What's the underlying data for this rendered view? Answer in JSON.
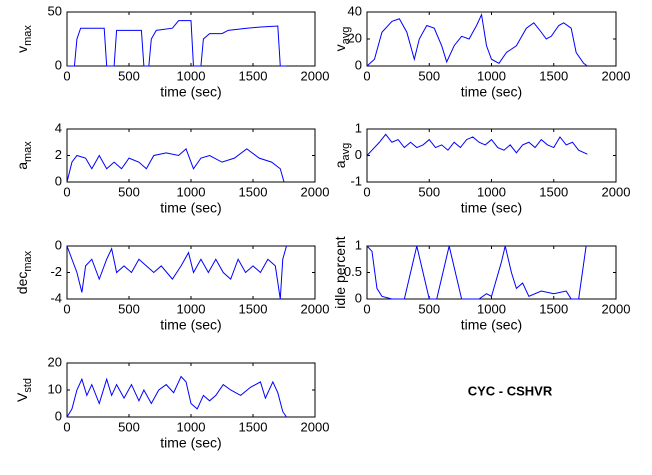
{
  "chart_data": [
    {
      "type": "line",
      "ylabel": "v",
      "ylabel_sub": "max",
      "xlabel": "time (sec)",
      "x": [
        0,
        60,
        80,
        110,
        300,
        320,
        380,
        400,
        600,
        620,
        660,
        680,
        720,
        850,
        900,
        1000,
        1020,
        1080,
        1100,
        1150,
        1250,
        1300,
        1450,
        1550,
        1700,
        1720,
        1770
      ],
      "series": [
        {
          "color": "#0000ff",
          "values": [
            0,
            0,
            25,
            35,
            35,
            0,
            0,
            33,
            33,
            0,
            0,
            25,
            33,
            35,
            42,
            42,
            0,
            0,
            25,
            30,
            30,
            33,
            35,
            36,
            37,
            0,
            0
          ]
        }
      ],
      "xlim": [
        0,
        2000
      ],
      "xticks": [
        0,
        500,
        1000,
        1500,
        2000
      ],
      "ylim": [
        0,
        50
      ],
      "yticks": [
        0,
        50
      ]
    },
    {
      "type": "line",
      "ylabel": "v",
      "ylabel_sub": "avg",
      "xlabel": "time (sec)",
      "x": [
        0,
        60,
        120,
        200,
        260,
        320,
        380,
        420,
        480,
        540,
        600,
        640,
        700,
        760,
        820,
        880,
        920,
        960,
        1000,
        1060,
        1120,
        1200,
        1280,
        1340,
        1400,
        1440,
        1480,
        1540,
        1580,
        1640,
        1680,
        1740,
        1770
      ],
      "series": [
        {
          "color": "#0000ff",
          "values": [
            0,
            5,
            25,
            33,
            35,
            25,
            5,
            20,
            30,
            28,
            15,
            3,
            15,
            22,
            20,
            30,
            38,
            15,
            5,
            2,
            10,
            15,
            28,
            32,
            25,
            20,
            22,
            30,
            32,
            28,
            10,
            2,
            0
          ]
        }
      ],
      "xlim": [
        0,
        2000
      ],
      "xticks": [
        0,
        500,
        1000,
        1500,
        2000
      ],
      "ylim": [
        0,
        40
      ],
      "yticks": [
        0,
        20,
        40
      ]
    },
    {
      "type": "line",
      "ylabel": "a",
      "ylabel_sub": "max",
      "xlabel": "time (sec)",
      "x": [
        0,
        40,
        80,
        150,
        200,
        260,
        320,
        380,
        440,
        500,
        580,
        640,
        700,
        800,
        900,
        960,
        1020,
        1080,
        1150,
        1250,
        1350,
        1450,
        1550,
        1650,
        1720,
        1750
      ],
      "series": [
        {
          "color": "#0000ff",
          "values": [
            0,
            1.5,
            2,
            1.8,
            1,
            2,
            1,
            1.5,
            1,
            1.8,
            1.5,
            1,
            2,
            2.2,
            2,
            2.5,
            1,
            1.8,
            2,
            1.5,
            1.8,
            2.5,
            1.8,
            1.5,
            1,
            0
          ]
        }
      ],
      "xlim": [
        0,
        2000
      ],
      "xticks": [
        0,
        500,
        1000,
        1500,
        2000
      ],
      "ylim": [
        0,
        4
      ],
      "yticks": [
        0,
        2,
        4
      ]
    },
    {
      "type": "line",
      "ylabel": "a",
      "ylabel_sub": "avg",
      "xlabel": "time (sec)",
      "x": [
        0,
        40,
        100,
        150,
        200,
        250,
        300,
        350,
        400,
        450,
        500,
        550,
        600,
        650,
        700,
        750,
        800,
        850,
        900,
        950,
        1000,
        1050,
        1100,
        1150,
        1200,
        1250,
        1300,
        1350,
        1400,
        1450,
        1500,
        1550,
        1600,
        1650,
        1700,
        1770
      ],
      "series": [
        {
          "color": "#0000ff",
          "values": [
            0,
            0.2,
            0.5,
            0.8,
            0.5,
            0.6,
            0.3,
            0.5,
            0.3,
            0.4,
            0.6,
            0.3,
            0.4,
            0.2,
            0.5,
            0.3,
            0.6,
            0.7,
            0.5,
            0.4,
            0.6,
            0.3,
            0.2,
            0.4,
            0.1,
            0.4,
            0.5,
            0.3,
            0.6,
            0.4,
            0.3,
            0.7,
            0.4,
            0.5,
            0.2,
            0.05
          ]
        }
      ],
      "xlim": [
        0,
        2000
      ],
      "xticks": [
        0,
        500,
        1000,
        1500,
        2000
      ],
      "ylim": [
        -1,
        1
      ],
      "yticks": [
        -1,
        0,
        1
      ]
    },
    {
      "type": "line",
      "ylabel": "dec",
      "ylabel_sub": "max",
      "xlabel": "time (sec)",
      "x": [
        0,
        40,
        80,
        120,
        150,
        200,
        260,
        320,
        360,
        400,
        460,
        520,
        580,
        640,
        700,
        760,
        850,
        920,
        980,
        1020,
        1080,
        1140,
        1200,
        1260,
        1320,
        1380,
        1440,
        1500,
        1560,
        1620,
        1680,
        1720,
        1740,
        1770
      ],
      "series": [
        {
          "color": "#0000ff",
          "values": [
            0,
            -1,
            -2,
            -3.5,
            -1.5,
            -1,
            -2.5,
            -1,
            -0.2,
            -2,
            -1.5,
            -2,
            -1,
            -1.5,
            -2,
            -1.5,
            -2.5,
            -1.5,
            -0.5,
            -2,
            -1,
            -2,
            -1,
            -2,
            -2.5,
            -1,
            -2,
            -1.5,
            -2,
            -1,
            -1.5,
            -4,
            -1,
            0
          ]
        }
      ],
      "xlim": [
        0,
        2000
      ],
      "xticks": [
        0,
        500,
        1000,
        1500,
        2000
      ],
      "ylim": [
        -4,
        0
      ],
      "yticks": [
        -4,
        -2,
        0
      ]
    },
    {
      "type": "line",
      "ylabel": "idle percent",
      "xlabel": "time (sec)",
      "x": [
        0,
        40,
        80,
        120,
        200,
        300,
        400,
        500,
        560,
        660,
        760,
        900,
        960,
        1000,
        1080,
        1110,
        1160,
        1200,
        1250,
        1300,
        1400,
        1500,
        1600,
        1640,
        1700,
        1760
      ],
      "series": [
        {
          "color": "#0000ff",
          "values": [
            1,
            0.9,
            0.2,
            0.05,
            0,
            0,
            1,
            0,
            0,
            1,
            0,
            0,
            0.1,
            0.05,
            0.7,
            1,
            0.5,
            0.2,
            0.3,
            0.05,
            0.15,
            0.1,
            0.15,
            0,
            0,
            1
          ]
        }
      ],
      "xlim": [
        0,
        2000
      ],
      "xticks": [
        0,
        500,
        1000,
        1500,
        2000
      ],
      "ylim": [
        0,
        1
      ],
      "yticks": [
        0,
        0.5,
        1
      ]
    },
    {
      "type": "line",
      "ylabel": "V",
      "ylabel_sub": "std",
      "xlabel": "time (sec)",
      "x": [
        0,
        40,
        80,
        120,
        160,
        200,
        260,
        320,
        360,
        400,
        460,
        520,
        580,
        620,
        680,
        740,
        800,
        860,
        920,
        960,
        1000,
        1050,
        1100,
        1150,
        1200,
        1260,
        1320,
        1400,
        1480,
        1560,
        1600,
        1660,
        1700,
        1740,
        1770
      ],
      "series": [
        {
          "color": "#0000ff",
          "values": [
            0,
            3,
            10,
            14,
            8,
            12,
            5,
            14,
            8,
            12,
            7,
            12,
            6,
            10,
            5,
            10,
            12,
            9,
            15,
            13,
            5,
            3,
            8,
            6,
            8,
            12,
            10,
            8,
            11,
            13,
            7,
            13,
            9,
            2,
            0
          ]
        }
      ],
      "xlim": [
        0,
        2000
      ],
      "xticks": [
        0,
        500,
        1000,
        1500,
        2000
      ],
      "ylim": [
        0,
        20
      ],
      "yticks": [
        0,
        10,
        20
      ]
    }
  ],
  "annotation": "CYC - CSHVR"
}
